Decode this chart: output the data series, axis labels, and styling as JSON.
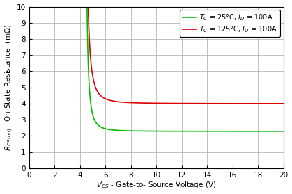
{
  "xlabel": "$V_{GS}$ - Gate-to- Source Voltage (V)",
  "ylabel": "$R_{DS(on)}$ - On-State Resistance  (mΩ)",
  "xlim": [
    0,
    20
  ],
  "ylim": [
    0,
    10
  ],
  "xticks": [
    0,
    2,
    4,
    6,
    8,
    10,
    12,
    14,
    16,
    18,
    20
  ],
  "yticks": [
    0,
    1,
    2,
    3,
    4,
    5,
    6,
    7,
    8,
    9,
    10
  ],
  "green_color": "#00bb00",
  "red_color": "#dd0000",
  "legend_label_green": "$T_C$ = 25°C, $I_D$ = 100A",
  "legend_label_red": "$T_C$ = 125°C, $I_D$ = 100A",
  "background_color": "#ffffff",
  "grid_color": "#aaaaaa",
  "green_asymptote": 2.28,
  "red_asymptote": 4.0,
  "green_v_th": 4.25,
  "red_v_th": 4.18,
  "figsize": [
    4.19,
    2.79
  ],
  "dpi": 100
}
